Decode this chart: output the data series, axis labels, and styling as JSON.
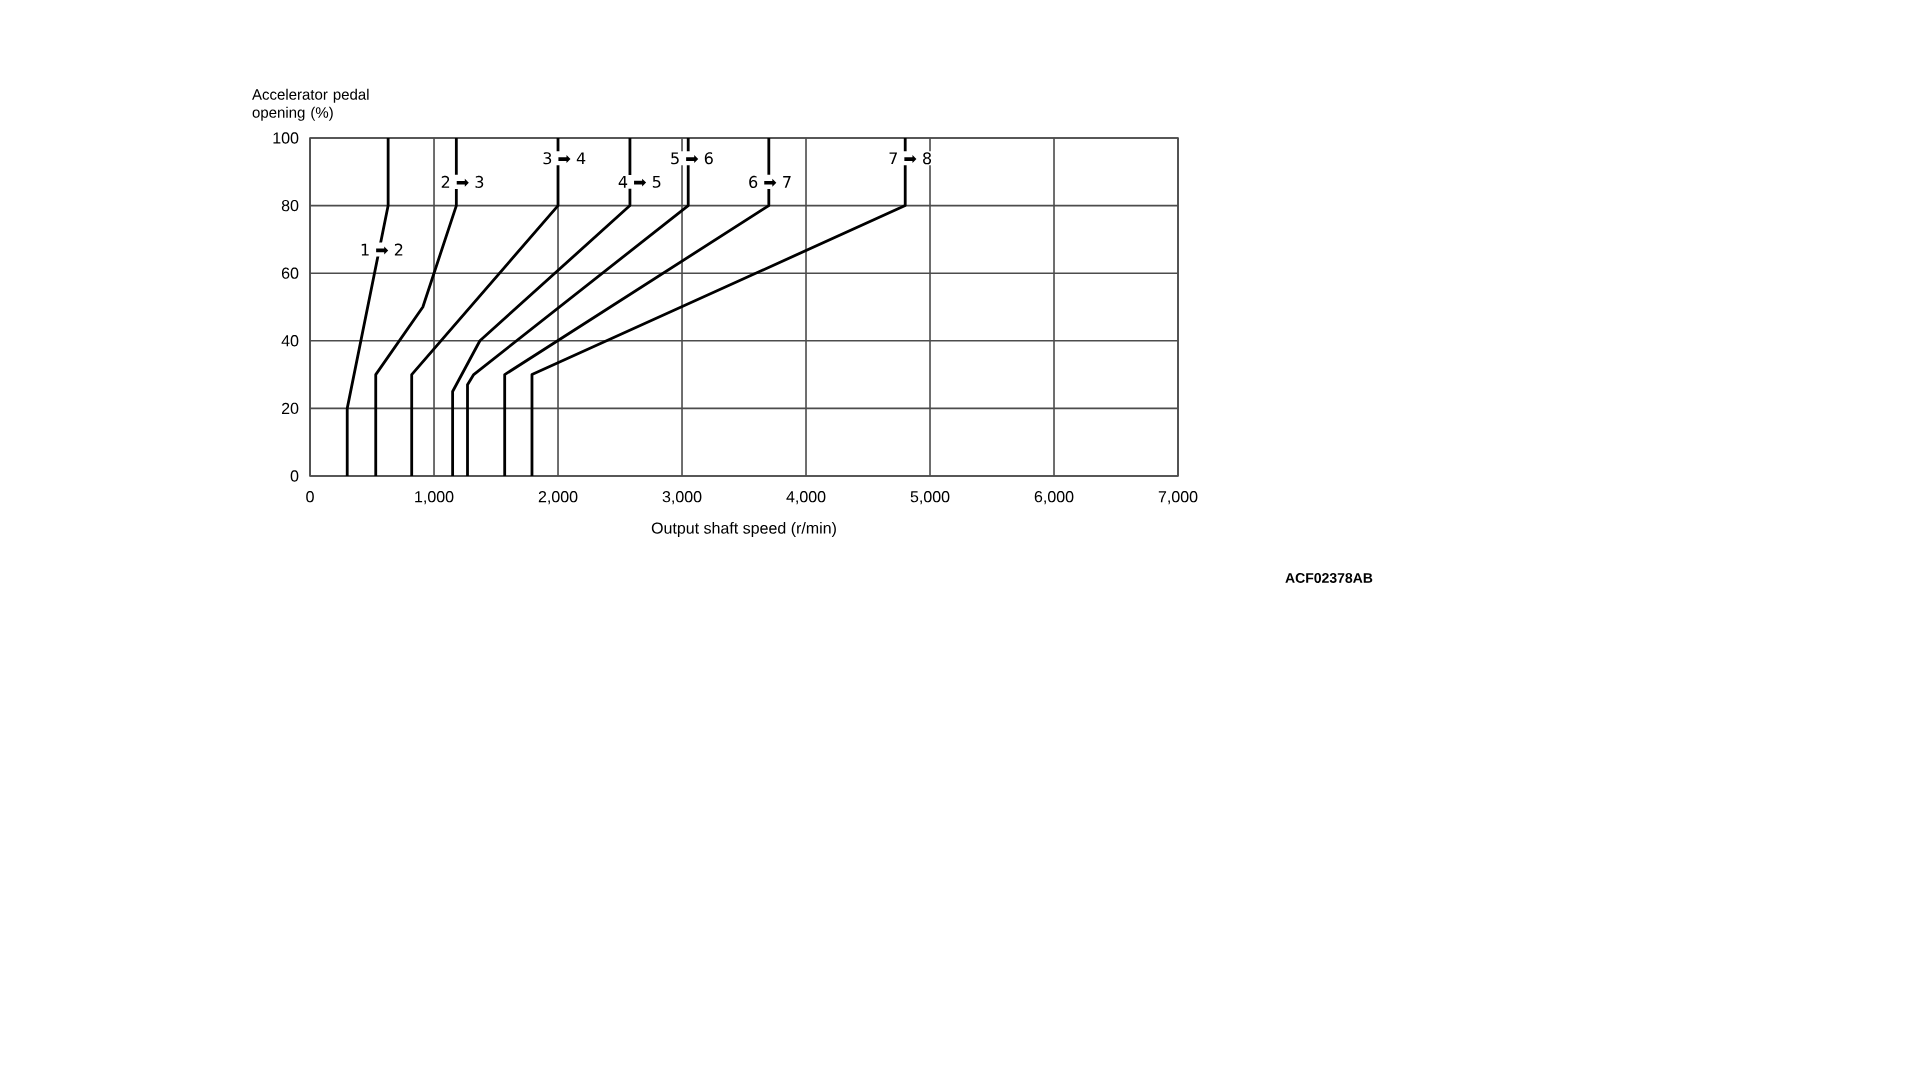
{
  "chart_data": {
    "type": "line",
    "xlabel": "Output shaft speed (r/min)",
    "ylabel": "Accelerator pedal opening (%)",
    "xlim": [
      0,
      7000
    ],
    "ylim": [
      0,
      100
    ],
    "xticks": [
      0,
      {
        "value": 1000,
        "label": "1,000"
      },
      {
        "value": 2000,
        "label": "2,000"
      },
      {
        "value": 3000,
        "label": "3,000"
      },
      {
        "value": 4000,
        "label": "4,000"
      },
      {
        "value": 5000,
        "label": "5,000"
      },
      {
        "value": 6000,
        "label": "6,000"
      },
      {
        "value": 7000,
        "label": "7,000"
      }
    ],
    "yticks": [
      0,
      20,
      40,
      60,
      80,
      100
    ],
    "grid": true,
    "marker": "none",
    "line_style": "solid",
    "series": [
      {
        "color": "#000000",
        "x": [
          300,
          300,
          630,
          630
        ],
        "values": [
          0,
          20,
          80,
          100
        ]
      },
      {
        "color": "#000000",
        "x": [
          530,
          530,
          910,
          1180,
          1180
        ],
        "values": [
          0,
          30,
          50,
          80,
          100
        ]
      },
      {
        "color": "#000000",
        "x": [
          820,
          820,
          2000,
          2000
        ],
        "values": [
          0,
          30,
          80,
          100
        ]
      },
      {
        "color": "#000000",
        "x": [
          1150,
          1150,
          1370,
          2580,
          2580
        ],
        "values": [
          0,
          25,
          40,
          80,
          100
        ]
      },
      {
        "color": "#000000",
        "x": [
          1270,
          1270,
          1320,
          3050,
          3050
        ],
        "values": [
          0,
          27,
          30,
          80,
          100
        ]
      },
      {
        "color": "#000000",
        "x": [
          1570,
          1570,
          3700,
          3700
        ],
        "values": [
          0,
          30,
          80,
          100
        ]
      },
      {
        "color": "#000000",
        "x": [
          1790,
          1790,
          4800,
          4800
        ],
        "values": [
          0,
          30,
          80,
          100
        ]
      }
    ],
    "annotations": [
      {
        "text": "1 ➡ 2",
        "x": 580,
        "y": 67
      },
      {
        "text": "2 ➡ 3",
        "x": 1230,
        "y": 87
      },
      {
        "text": "3 ➡ 4",
        "x": 2050,
        "y": 94
      },
      {
        "text": "4 ➡ 5",
        "x": 2660,
        "y": 87
      },
      {
        "text": "5 ➡ 6",
        "x": 3080,
        "y": 94
      },
      {
        "text": "6 ➡ 7",
        "x": 3710,
        "y": 87
      },
      {
        "text": "7 ➡ 8",
        "x": 4840,
        "y": 94
      },
      "ACF02378AB"
    ]
  }
}
